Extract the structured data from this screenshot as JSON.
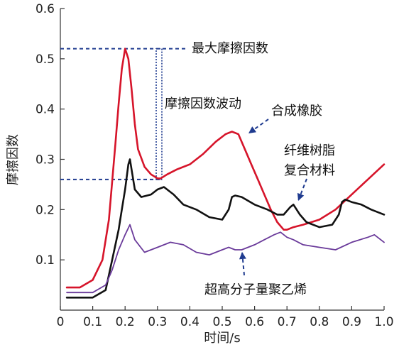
{
  "chart_data": {
    "type": "line",
    "title": "",
    "xlabel": "时间/s",
    "ylabel": "摩擦因数",
    "xlim": [
      0,
      1.0
    ],
    "ylim": [
      0,
      0.6
    ],
    "xticks": [
      "0",
      "0.1",
      "0.2",
      "0.3",
      "0.4",
      "0.5",
      "0.6",
      "0.7",
      "0.8",
      "0.9",
      "1.0"
    ],
    "yticks": [
      "0.1",
      "0.2",
      "0.3",
      "0.4",
      "0.5",
      "0.6"
    ],
    "grid": false,
    "series": [
      {
        "name": "合成橡胶",
        "color": "#d6142a",
        "width": 2.6,
        "x": [
          0.02,
          0.06,
          0.1,
          0.13,
          0.15,
          0.17,
          0.18,
          0.19,
          0.2,
          0.21,
          0.22,
          0.23,
          0.24,
          0.26,
          0.28,
          0.3,
          0.31,
          0.33,
          0.36,
          0.4,
          0.44,
          0.48,
          0.51,
          0.53,
          0.55,
          0.57,
          0.59,
          0.61,
          0.63,
          0.65,
          0.67,
          0.69,
          0.7,
          0.72,
          0.75,
          0.8,
          0.85,
          0.9,
          0.95,
          1.0
        ],
        "y": [
          0.045,
          0.045,
          0.06,
          0.1,
          0.18,
          0.33,
          0.41,
          0.48,
          0.52,
          0.5,
          0.44,
          0.37,
          0.32,
          0.285,
          0.27,
          0.262,
          0.262,
          0.27,
          0.28,
          0.29,
          0.31,
          0.335,
          0.35,
          0.355,
          0.35,
          0.32,
          0.29,
          0.26,
          0.23,
          0.2,
          0.175,
          0.16,
          0.16,
          0.165,
          0.17,
          0.18,
          0.2,
          0.23,
          0.26,
          0.29
        ]
      },
      {
        "name": "纤维树脂复合材料",
        "color": "#111111",
        "width": 2.6,
        "x": [
          0.02,
          0.1,
          0.14,
          0.16,
          0.18,
          0.19,
          0.2,
          0.21,
          0.215,
          0.22,
          0.23,
          0.25,
          0.28,
          0.3,
          0.32,
          0.35,
          0.38,
          0.42,
          0.46,
          0.5,
          0.52,
          0.53,
          0.54,
          0.56,
          0.6,
          0.64,
          0.67,
          0.69,
          0.71,
          0.72,
          0.74,
          0.76,
          0.8,
          0.84,
          0.86,
          0.87,
          0.88,
          0.9,
          0.93,
          0.96,
          1.0
        ],
        "y": [
          0.025,
          0.025,
          0.04,
          0.1,
          0.16,
          0.2,
          0.24,
          0.29,
          0.3,
          0.28,
          0.24,
          0.225,
          0.23,
          0.24,
          0.245,
          0.23,
          0.21,
          0.2,
          0.185,
          0.18,
          0.2,
          0.225,
          0.228,
          0.225,
          0.21,
          0.2,
          0.19,
          0.19,
          0.205,
          0.21,
          0.19,
          0.175,
          0.165,
          0.17,
          0.19,
          0.215,
          0.22,
          0.215,
          0.21,
          0.2,
          0.19
        ]
      },
      {
        "name": "超高分子量聚乙烯",
        "color": "#6a3a9a",
        "width": 1.8,
        "x": [
          0.02,
          0.1,
          0.14,
          0.16,
          0.18,
          0.2,
          0.215,
          0.23,
          0.26,
          0.3,
          0.34,
          0.38,
          0.42,
          0.46,
          0.5,
          0.52,
          0.54,
          0.56,
          0.6,
          0.63,
          0.66,
          0.68,
          0.7,
          0.72,
          0.75,
          0.8,
          0.85,
          0.9,
          0.95,
          0.97,
          1.0
        ],
        "y": [
          0.035,
          0.035,
          0.05,
          0.08,
          0.12,
          0.15,
          0.17,
          0.14,
          0.115,
          0.125,
          0.135,
          0.13,
          0.115,
          0.11,
          0.12,
          0.125,
          0.12,
          0.12,
          0.13,
          0.14,
          0.15,
          0.155,
          0.145,
          0.14,
          0.13,
          0.125,
          0.12,
          0.135,
          0.145,
          0.15,
          0.135
        ]
      }
    ],
    "annotations": {
      "max_label": "最大摩擦因数",
      "fluct_label": "摩擦因数波动",
      "rubber_label": "合成橡胶",
      "resin_label_1": "纤维树脂",
      "resin_label_2": "复合材料",
      "uhmwpe_label": "超高分子量聚乙烯"
    },
    "reference_levels": {
      "max": 0.52,
      "min": 0.26
    }
  }
}
